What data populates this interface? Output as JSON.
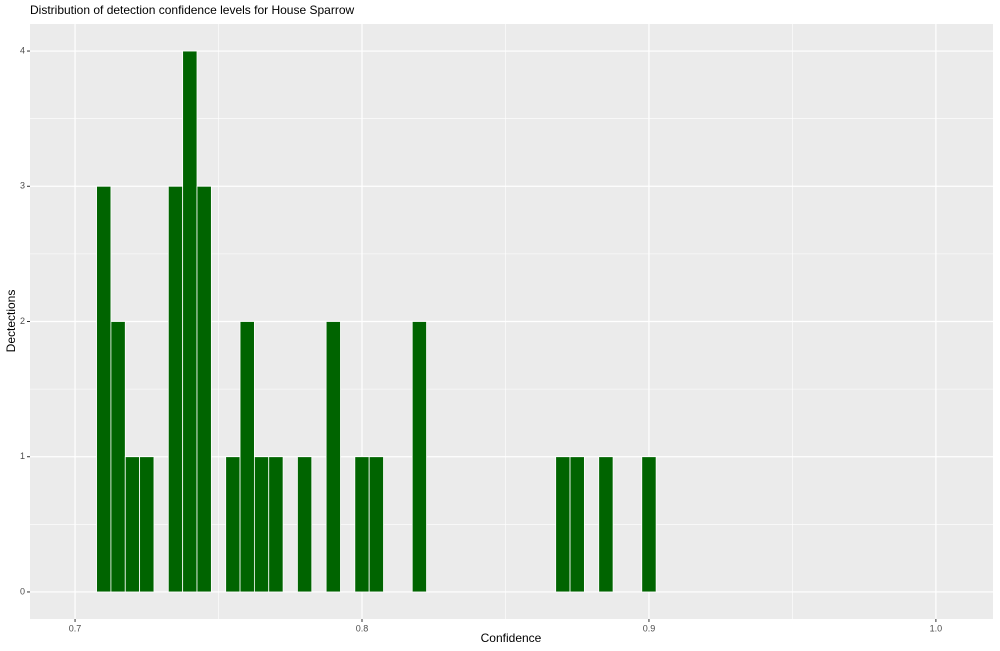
{
  "chart_data": {
    "type": "histogram",
    "title": "Distribution of detection confidence levels for House Sparrow",
    "x_label": "Confidence",
    "y_label": "Dectections",
    "bins": [
      0.7075,
      0.7125,
      0.7175,
      0.7225,
      0.7275,
      0.7325,
      0.7375,
      0.7425,
      0.7475,
      0.7525,
      0.7575,
      0.7625,
      0.7675,
      0.7725,
      0.7775,
      0.7825,
      0.7875,
      0.7925,
      0.7975,
      0.8025,
      0.8075,
      0.8125,
      0.8175,
      0.8225,
      0.8275,
      0.8325,
      0.8375,
      0.8425,
      0.8475,
      0.8525,
      0.8575,
      0.8625,
      0.8675,
      0.8725,
      0.8775,
      0.8825,
      0.8875,
      0.8925,
      0.8975,
      0.9025
    ],
    "counts": [
      3,
      2,
      1,
      1,
      0,
      3,
      4,
      3,
      0,
      1,
      2,
      1,
      1,
      0,
      1,
      0,
      2,
      0,
      1,
      1,
      0,
      0,
      2,
      0,
      0,
      0,
      0,
      0,
      0,
      0,
      0,
      0,
      1,
      1,
      0,
      1,
      0,
      0,
      1
    ],
    "color": "#006400",
    "xlim": [
      0.6843,
      1.0199
    ],
    "ylim": [
      -0.2,
      4.2
    ],
    "xticks": [
      0.7,
      0.8,
      0.9,
      {
        "value": 1.0,
        "label": "1.0"
      }
    ],
    "yticks": [
      0,
      1,
      2,
      3,
      4
    ],
    "xminorticks": [
      0.75,
      0.85,
      0.95
    ],
    "yminorticks": [
      0.5,
      1.5,
      2.5,
      3.5
    ],
    "grid": true
  }
}
